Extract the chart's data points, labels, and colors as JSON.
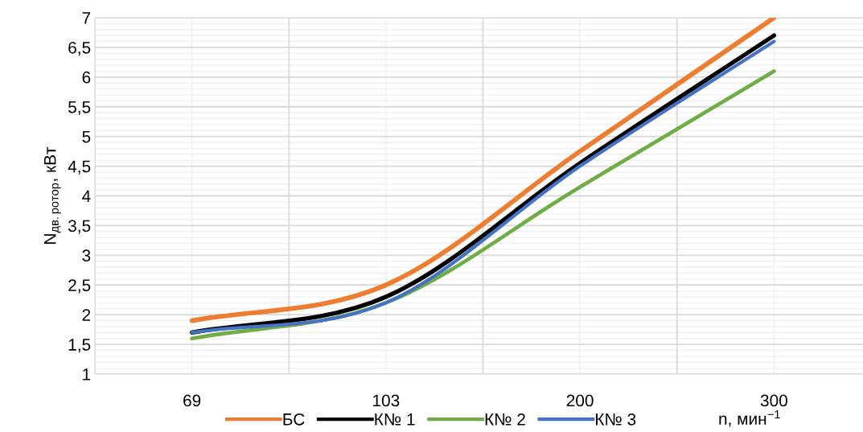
{
  "chart_data": {
    "type": "line",
    "ylabel": "N$_{дв.ротор}$, кВт",
    "xlabel": "n, мин$^{−1}$",
    "categories": [
      "69",
      "103",
      "200",
      "300"
    ],
    "series": [
      {
        "name": "БС",
        "color": "#ed7d31",
        "values": [
          1.9,
          2.5,
          4.75,
          7.0
        ]
      },
      {
        "name": "К№ 1",
        "color": "#000000",
        "values": [
          1.7,
          2.3,
          4.55,
          6.7
        ]
      },
      {
        "name": "К№ 2",
        "color": "#70ad47",
        "values": [
          1.6,
          2.2,
          4.15,
          6.1
        ]
      },
      {
        "name": "К№ 3",
        "color": "#4472c4",
        "values": [
          1.7,
          2.2,
          4.5,
          6.6
        ]
      }
    ],
    "ylim": [
      1,
      7
    ],
    "yticks": [
      1,
      {
        "value": 1.1,
        "label": null
      },
      {
        "value": 1.2,
        "label": null
      },
      {
        "value": 1.3,
        "label": null
      },
      {
        "value": 1.4,
        "label": null
      },
      {
        "value": 1.5,
        "label": "1,5"
      },
      {
        "value": 1.6,
        "label": null
      },
      {
        "value": 1.7,
        "label": null
      },
      {
        "value": 1.8,
        "label": null
      },
      {
        "value": 1.9,
        "label": null
      },
      2,
      {
        "value": 2.1,
        "label": null
      },
      {
        "value": 2.2,
        "label": null
      },
      {
        "value": 2.3,
        "label": null
      },
      {
        "value": 2.4,
        "label": null
      },
      {
        "value": 2.5,
        "label": "2,5"
      },
      {
        "value": 2.6,
        "label": null
      },
      {
        "value": 2.7,
        "label": null
      },
      {
        "value": 2.8,
        "label": null
      },
      {
        "value": 2.9,
        "label": null
      },
      3,
      {
        "value": 3.1,
        "label": null
      },
      {
        "value": 3.2,
        "label": null
      },
      {
        "value": 3.3,
        "label": null
      },
      {
        "value": 3.4,
        "label": null
      },
      {
        "value": 3.5,
        "label": "3,5"
      },
      {
        "value": 3.6,
        "label": null
      },
      {
        "value": 3.7,
        "label": null
      },
      {
        "value": 3.8,
        "label": null
      },
      {
        "value": 3.9,
        "label": null
      },
      4,
      {
        "value": 4.1,
        "label": null
      },
      {
        "value": 4.2,
        "label": null
      },
      {
        "value": 4.3,
        "label": null
      },
      {
        "value": 4.4,
        "label": null
      },
      {
        "value": 4.5,
        "label": "4,5"
      },
      {
        "value": 4.6,
        "label": null
      },
      {
        "value": 4.7,
        "label": null
      },
      {
        "value": 4.8,
        "label": null
      },
      {
        "value": 4.9,
        "label": null
      },
      5,
      {
        "value": 5.1,
        "label": null
      },
      {
        "value": 5.2,
        "label": null
      },
      {
        "value": 5.3,
        "label": null
      },
      {
        "value": 5.4,
        "label": null
      },
      {
        "value": 5.5,
        "label": "5,5"
      },
      {
        "value": 5.6,
        "label": null
      },
      {
        "value": 5.7,
        "label": null
      },
      {
        "value": 5.8,
        "label": null
      },
      {
        "value": 5.9,
        "label": null
      },
      6,
      {
        "value": 6.1,
        "label": null
      },
      {
        "value": 6.2,
        "label": null
      },
      {
        "value": 6.3,
        "label": null
      },
      {
        "value": 6.4,
        "label": null
      },
      {
        "value": 6.5,
        "label": "6,5"
      },
      {
        "value": 6.6,
        "label": null
      },
      {
        "value": 6.7,
        "label": null
      },
      {
        "value": 6.8,
        "label": null
      },
      {
        "value": 6.9,
        "label": null
      },
      7
    ],
    "grid": true,
    "legend": "bottom",
    "marker": "none",
    "line_style": "solid"
  }
}
